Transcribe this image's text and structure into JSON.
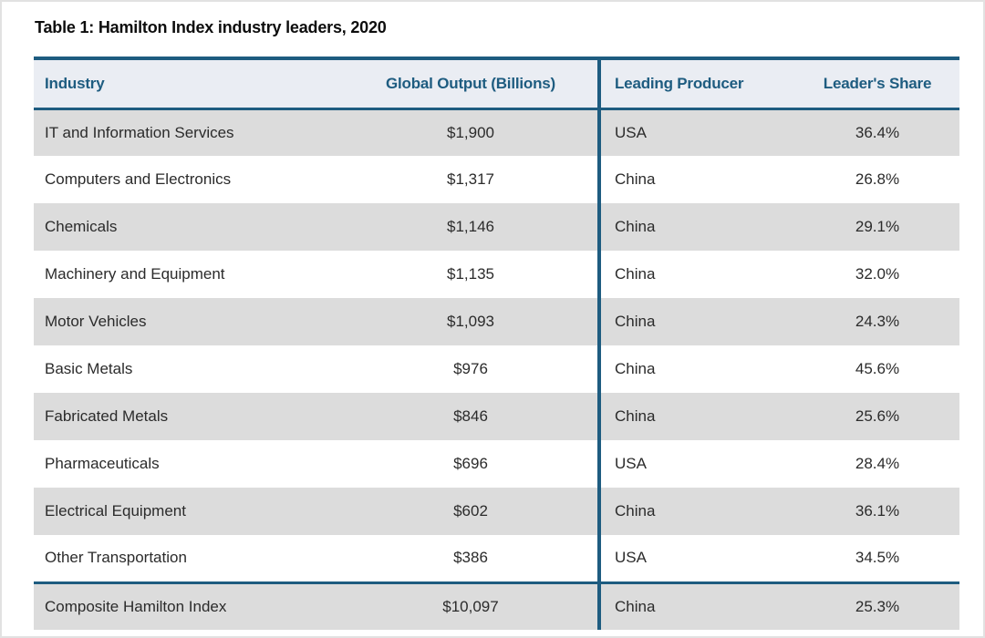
{
  "title": "Table 1: Hamilton Index industry leaders, 2020",
  "colors": {
    "accent_teal": "#1e5c80",
    "header_background": "#eaedf3",
    "row_alternate_gray": "#dcdcdc",
    "row_white": "#ffffff",
    "body_text": "#2b2b2b"
  },
  "chart_data": {
    "type": "table",
    "title": "Table 1: Hamilton Index industry leaders, 2020",
    "columns": [
      "Industry",
      "Global Output (Billions)",
      "Leading Producer",
      "Leader's Share"
    ],
    "rows": [
      [
        "IT and Information Services",
        "$1,900",
        "USA",
        "36.4%"
      ],
      [
        "Computers and Electronics",
        "$1,317",
        "China",
        "26.8%"
      ],
      [
        "Chemicals",
        "$1,146",
        "China",
        "29.1%"
      ],
      [
        "Machinery and Equipment",
        "$1,135",
        "China",
        "32.0%"
      ],
      [
        "Motor Vehicles",
        "$1,093",
        "China",
        "24.3%"
      ],
      [
        "Basic Metals",
        "$976",
        "China",
        "45.6%"
      ],
      [
        "Fabricated Metals",
        "$846",
        "China",
        "25.6%"
      ],
      [
        "Pharmaceuticals",
        "$696",
        "USA",
        "28.4%"
      ],
      [
        "Electrical Equipment",
        "$602",
        "China",
        "36.1%"
      ],
      [
        "Other Transportation",
        "$386",
        "USA",
        "34.5%"
      ]
    ],
    "composite_row": [
      "Composite Hamilton Index",
      "$10,097",
      "China",
      "25.3%"
    ],
    "layout_hints": {
      "row_striping": "first data row gray, alternating; composite row gray with teal rule above",
      "vertical_divider": "teal rule between Global Output and Leading Producer columns",
      "header_rules": "thick teal rule above and below header row"
    }
  }
}
